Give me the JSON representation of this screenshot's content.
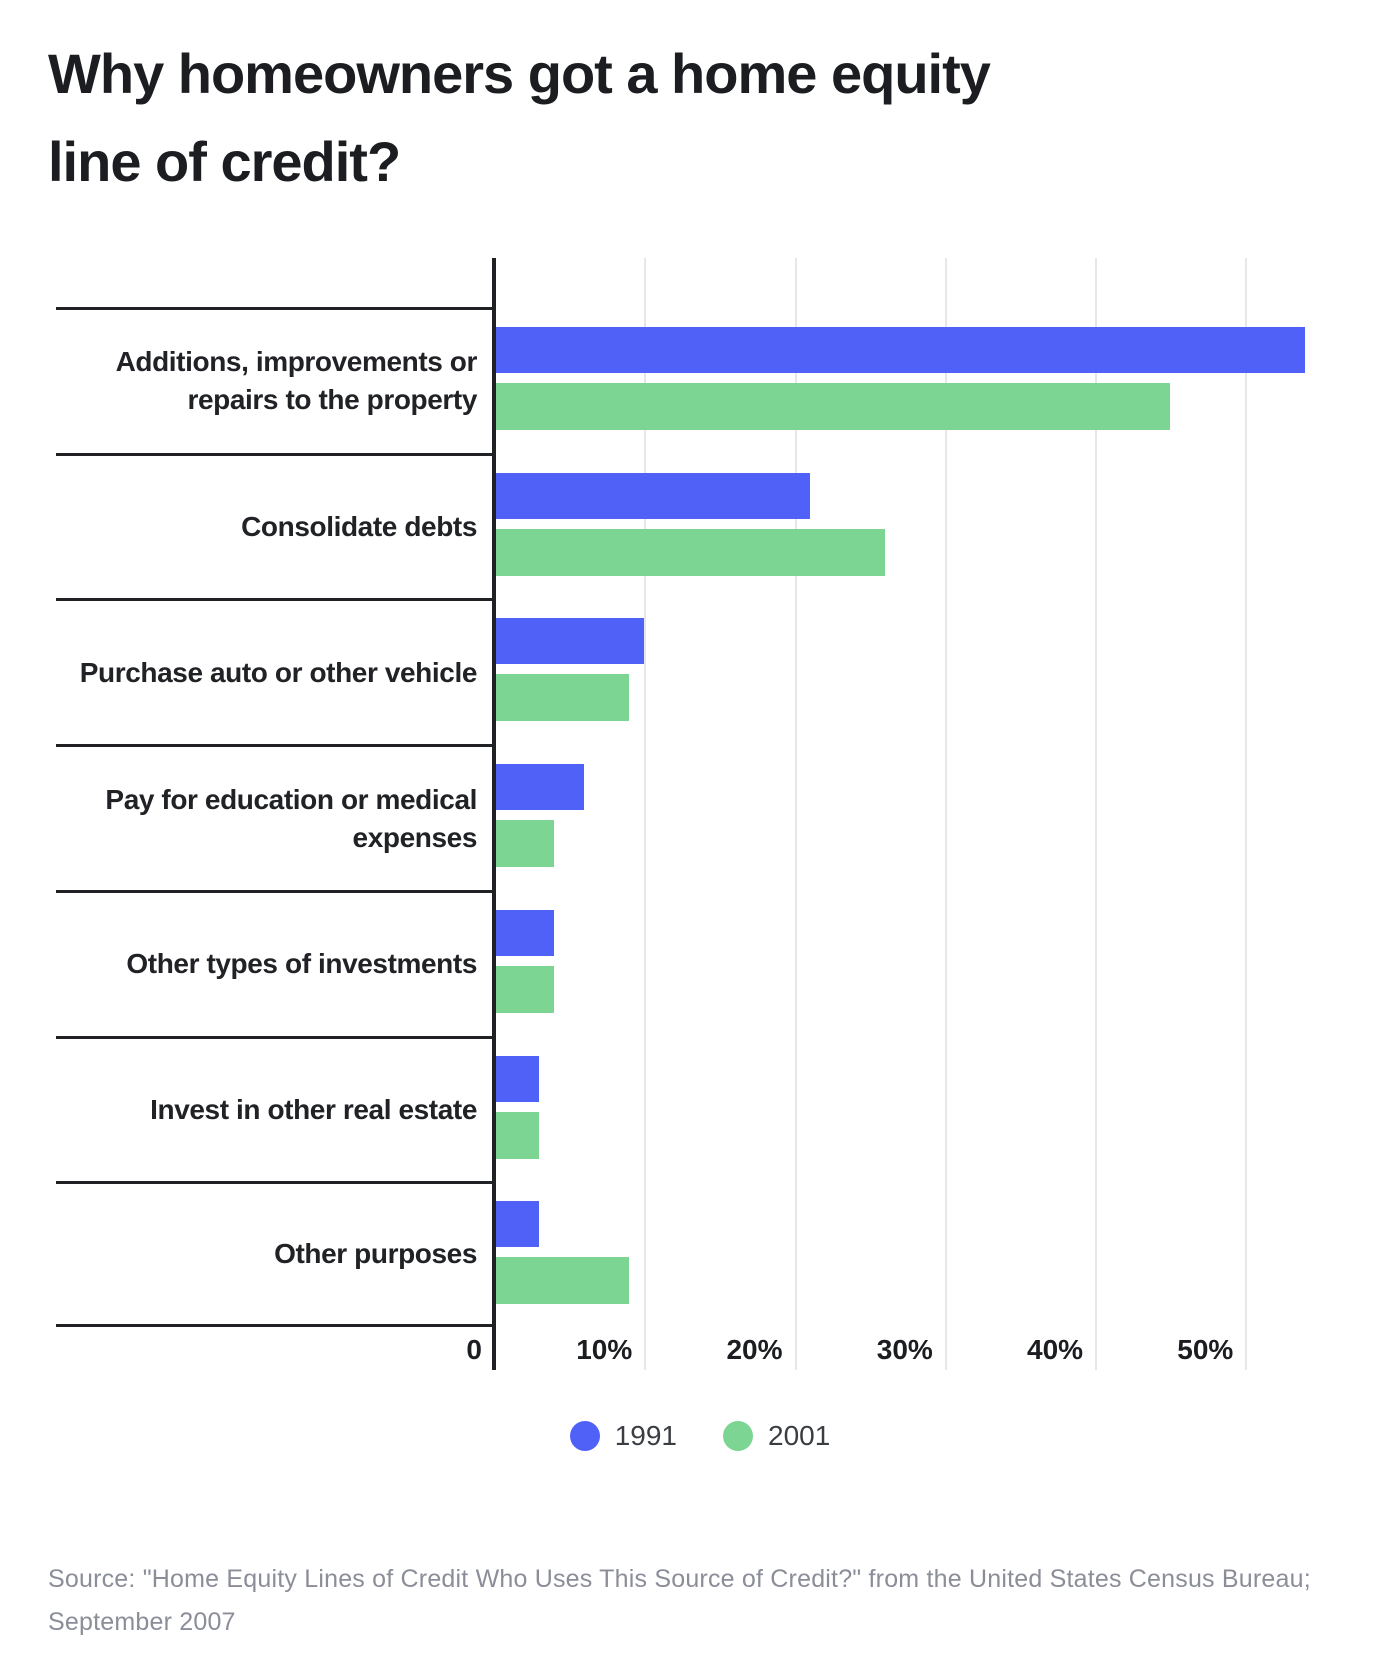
{
  "title_lines": [
    "Why homeowners got a home equity",
    "line of credit?"
  ],
  "source_lines": [
    "Source: \"Home Equity Lines of Credit Who Uses This Source of Credit?\" from the United States Census Bureau;",
    "September 2007"
  ],
  "legend": {
    "items": [
      {
        "label": "1991",
        "color": "#4f61f6"
      },
      {
        "label": "2001",
        "color": "#7dd594"
      }
    ]
  },
  "colors": {
    "axis": "#202124",
    "grid": "#e7e7ea",
    "title_text": "#1b1d21",
    "source_text": "#8b8e98",
    "series_1991": "#4f61f6",
    "series_2001": "#7dd594"
  },
  "chart_data": {
    "type": "bar",
    "orientation": "horizontal",
    "title": "Why homeowners got a home equity line of credit?",
    "categories": [
      "Additions, improvements or repairs to the property",
      "Consolidate debts",
      "Purchase auto or other vehicle",
      "Pay for education or medical expenses",
      "Other types of investments",
      "Invest in other real estate",
      "Other purposes"
    ],
    "series": [
      {
        "name": "1991",
        "color": "#4f61f6",
        "values": [
          54,
          21,
          10,
          6,
          4,
          3,
          3
        ]
      },
      {
        "name": "2001",
        "color": "#7dd594",
        "values": [
          45,
          26,
          9,
          4,
          4,
          3,
          9
        ]
      }
    ],
    "units": "percent",
    "xlabel": "",
    "ylabel": "",
    "xlim": [
      0,
      56.3
    ],
    "x_ticks": [
      {
        "value": 0,
        "label": "0"
      },
      {
        "value": 10,
        "label": "10%"
      },
      {
        "value": 20,
        "label": "20%"
      },
      {
        "value": 30,
        "label": "30%"
      },
      {
        "value": 40,
        "label": "40%"
      },
      {
        "value": 50,
        "label": "50%"
      }
    ],
    "grid": "vertical",
    "legend_position": "bottom"
  }
}
